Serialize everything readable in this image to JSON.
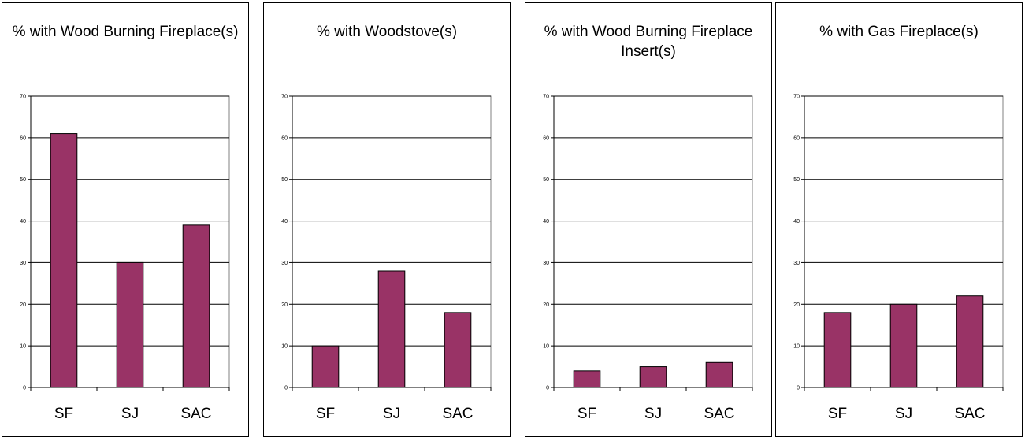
{
  "chart_data": [
    {
      "type": "bar",
      "title": "% with Wood Burning Fireplace(s)",
      "categories": [
        "SF",
        "SJ",
        "SAC"
      ],
      "values": [
        61,
        30,
        39
      ],
      "ylim": [
        0,
        70
      ],
      "yticks": [
        0,
        10,
        20,
        30,
        40,
        50,
        60,
        70
      ],
      "grid": true,
      "bar_color": "#993366"
    },
    {
      "type": "bar",
      "title": "% with Woodstove(s)",
      "categories": [
        "SF",
        "SJ",
        "SAC"
      ],
      "values": [
        10,
        28,
        18
      ],
      "ylim": [
        0,
        70
      ],
      "yticks": [
        0,
        10,
        20,
        30,
        40,
        50,
        60,
        70
      ],
      "grid": true,
      "bar_color": "#993366"
    },
    {
      "type": "bar",
      "title": "% with Wood Burning Fireplace Insert(s)",
      "categories": [
        "SF",
        "SJ",
        "SAC"
      ],
      "values": [
        4,
        5,
        6
      ],
      "ylim": [
        0,
        70
      ],
      "yticks": [
        0,
        10,
        20,
        30,
        40,
        50,
        60,
        70
      ],
      "grid": true,
      "bar_color": "#993366"
    },
    {
      "type": "bar",
      "title": "% with Gas Fireplace(s)",
      "categories": [
        "SF",
        "SJ",
        "SAC"
      ],
      "values": [
        18,
        20,
        22
      ],
      "ylim": [
        0,
        70
      ],
      "yticks": [
        0,
        10,
        20,
        30,
        40,
        50,
        60,
        70
      ],
      "grid": true,
      "bar_color": "#993366"
    }
  ]
}
